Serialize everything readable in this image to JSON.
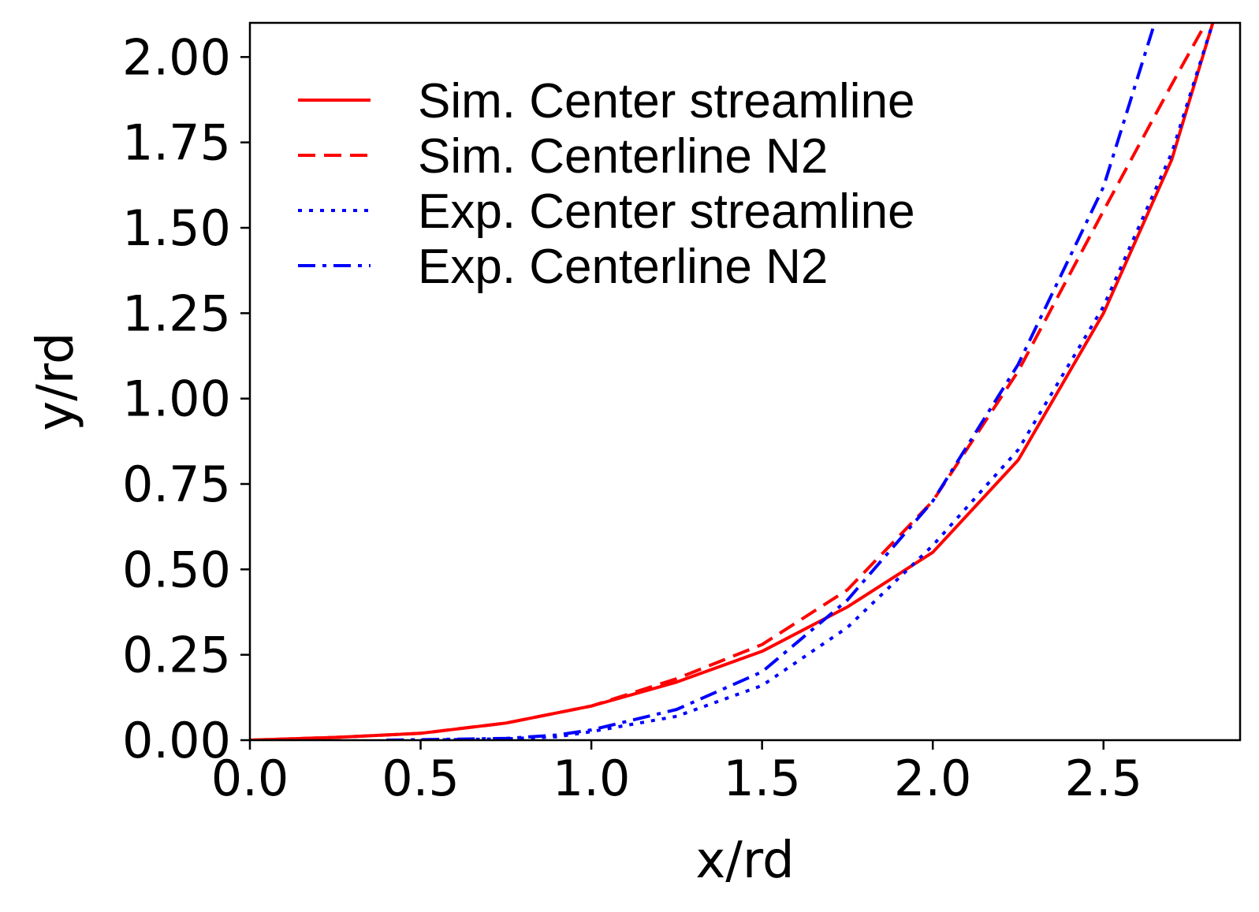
{
  "chart_data": {
    "type": "line",
    "title": "",
    "xlabel": "x/rd",
    "ylabel": "y/rd",
    "xlim": [
      0.0,
      2.9
    ],
    "ylim": [
      0.0,
      2.1
    ],
    "xticks": [
      0.0,
      0.5,
      1.0,
      1.5,
      2.0,
      2.5
    ],
    "yticks": [
      0.0,
      0.25,
      0.5,
      0.75,
      1.0,
      1.25,
      1.5,
      1.75,
      2.0
    ],
    "xtick_labels": [
      "0.0",
      "0.5",
      "1.0",
      "1.5",
      "2.0",
      "2.5"
    ],
    "ytick_labels": [
      "0.00",
      "0.25",
      "0.50",
      "0.75",
      "1.00",
      "1.25",
      "1.50",
      "1.75",
      "2.00"
    ],
    "grid": false,
    "legend_position": "top-left",
    "series": [
      {
        "name": "Sim. Center streamline",
        "color": "#ff0000",
        "style": "solid",
        "x": [
          0.0,
          0.25,
          0.5,
          0.75,
          1.0,
          1.25,
          1.5,
          1.75,
          2.0,
          2.25,
          2.5,
          2.7,
          2.82
        ],
        "y": [
          0.0,
          0.008,
          0.02,
          0.05,
          0.1,
          0.17,
          0.26,
          0.39,
          0.55,
          0.82,
          1.25,
          1.7,
          2.1
        ]
      },
      {
        "name": "Sim. Centerline N2",
        "color": "#ff0000",
        "style": "dashed",
        "x": [
          0.0,
          0.25,
          0.5,
          0.75,
          1.0,
          1.25,
          1.5,
          1.75,
          2.0,
          2.25,
          2.5,
          2.7,
          2.8
        ],
        "y": [
          0.0,
          0.008,
          0.02,
          0.05,
          0.1,
          0.18,
          0.28,
          0.44,
          0.7,
          1.08,
          1.55,
          1.92,
          2.1
        ]
      },
      {
        "name": "Exp. Center streamline",
        "color": "#0000ff",
        "style": "dotted",
        "x": [
          0.5,
          0.75,
          0.9,
          1.0,
          1.25,
          1.5,
          1.75,
          2.0,
          2.25,
          2.5,
          2.7,
          2.82
        ],
        "y": [
          0.0,
          0.004,
          0.01,
          0.025,
          0.07,
          0.16,
          0.33,
          0.57,
          0.85,
          1.27,
          1.72,
          2.1
        ]
      },
      {
        "name": "Exp. Centerline N2",
        "color": "#0000ff",
        "style": "dashdot",
        "x": [
          0.4,
          0.75,
          0.9,
          1.0,
          1.25,
          1.5,
          1.75,
          2.0,
          2.25,
          2.5,
          2.65
        ],
        "y": [
          0.0,
          0.005,
          0.015,
          0.03,
          0.09,
          0.2,
          0.41,
          0.7,
          1.1,
          1.62,
          2.1
        ]
      }
    ]
  }
}
